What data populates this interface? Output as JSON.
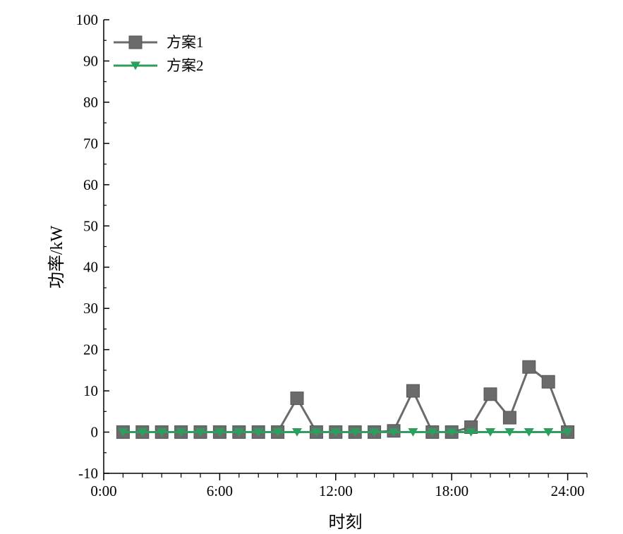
{
  "chart_data": {
    "type": "line",
    "title": "",
    "xlabel": "时刻",
    "ylabel": "功率/kW",
    "xlim": [
      0,
      25
    ],
    "ylim": [
      -10,
      100
    ],
    "x_ticks": [
      {
        "value": 0,
        "label": "0:00"
      },
      {
        "value": 6,
        "label": "6:00"
      },
      {
        "value": 12,
        "label": "12:00"
      },
      {
        "value": 18,
        "label": "18:00"
      },
      {
        "value": 24,
        "label": "24:00"
      }
    ],
    "x_minor_ticks": [
      1,
      2,
      3,
      4,
      5,
      7,
      8,
      9,
      10,
      11,
      13,
      14,
      15,
      16,
      17,
      19,
      20,
      21,
      22,
      23,
      25
    ],
    "y_ticks": [
      -10,
      0,
      10,
      20,
      30,
      40,
      50,
      60,
      70,
      80,
      90,
      100
    ],
    "legend_position": "top-left",
    "x": [
      1,
      2,
      3,
      4,
      5,
      6,
      7,
      8,
      9,
      10,
      11,
      12,
      13,
      14,
      15,
      16,
      17,
      18,
      19,
      20,
      21,
      22,
      23,
      24
    ],
    "series": [
      {
        "name": "方案1",
        "marker": "square",
        "color": "#6b6b6b",
        "values": [
          0,
          0,
          0,
          0,
          0,
          0,
          0,
          0,
          0,
          8.2,
          0,
          0,
          0,
          0,
          0.3,
          10.0,
          0,
          0,
          1.2,
          9.2,
          3.5,
          15.8,
          12.2,
          0
        ]
      },
      {
        "name": "方案2",
        "marker": "triangle-down",
        "color": "#2e9e5e",
        "values": [
          0,
          0,
          0,
          0,
          0,
          0,
          0,
          0,
          0,
          0,
          0,
          0,
          0,
          0,
          0,
          0,
          0,
          0,
          0,
          0,
          0,
          0,
          0,
          0
        ]
      }
    ]
  }
}
